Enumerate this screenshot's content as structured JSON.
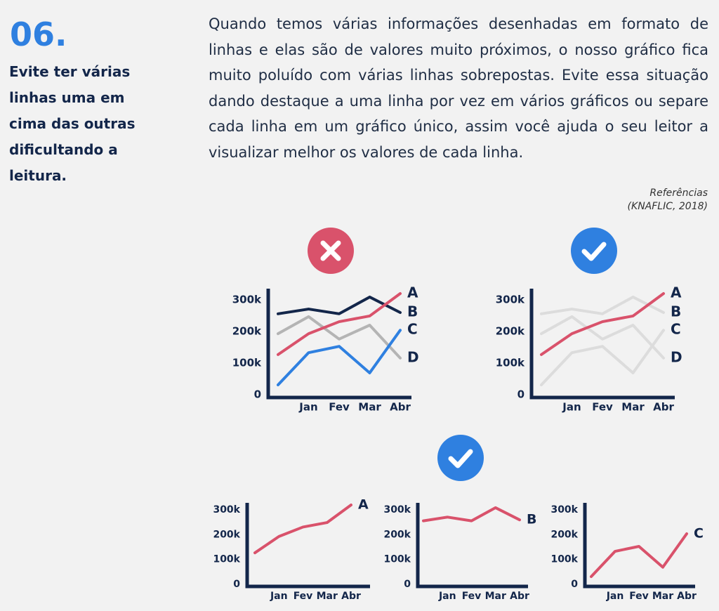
{
  "header": {
    "number": "06.",
    "title": "Evite ter várias linhas uma em cima das outras dificultando a leitura."
  },
  "body": "Quando temos várias informações desenhadas em formato de linhas e elas são de valores muito próximos, o nosso gráfico fica muito poluído com várias linhas sobrepostas. Evite essa situação dando destaque a uma linha por vez em vários gráficos ou separe cada linha em um gráfico único, assim você ajuda o seu leitor a visualizar melhor os valores de cada linha.",
  "reference": {
    "label": "Referências",
    "citation": "(KNAFLIC, 2018)"
  },
  "chart_data": [
    {
      "type": "line",
      "categories": [
        null,
        "Jan",
        "Fev",
        "Mar",
        "Abr"
      ],
      "series": [
        {
          "name": "A",
          "color": "#d9526b",
          "values": [
            127,
            193,
            231,
            249,
            320
          ]
        },
        {
          "name": "B",
          "color": "#13264a",
          "values": [
            256,
            271,
            256,
            309,
            260
          ]
        },
        {
          "name": "C",
          "color": "#2f80e0",
          "values": [
            31,
            133,
            153,
            69,
            204
          ]
        },
        {
          "name": "D",
          "color": "#b4b4b4",
          "values": [
            193,
            247,
            176,
            220,
            116
          ]
        }
      ],
      "ylim": [
        0,
        330
      ],
      "yticks": [
        0,
        {
          "value": 100,
          "label": "100k"
        },
        {
          "value": 200,
          "label": "200k"
        },
        {
          "value": 300,
          "label": "300k"
        }
      ]
    },
    {
      "type": "line",
      "categories": [
        null,
        "Jan",
        "Fev",
        "Mar",
        "Abr"
      ],
      "series": [
        {
          "name": "A",
          "color": "#d9526b",
          "values": [
            127,
            193,
            231,
            249,
            320
          ]
        },
        {
          "name": "B",
          "color": "#dcdcdc",
          "values": [
            256,
            271,
            256,
            309,
            260
          ]
        },
        {
          "name": "C",
          "color": "#dcdcdc",
          "values": [
            31,
            133,
            153,
            69,
            204
          ]
        },
        {
          "name": "D",
          "color": "#dcdcdc",
          "values": [
            193,
            247,
            176,
            220,
            116
          ]
        }
      ],
      "ylim": [
        0,
        330
      ],
      "yticks": [
        0,
        {
          "value": 100,
          "label": "100k"
        },
        {
          "value": 200,
          "label": "200k"
        },
        {
          "value": 300,
          "label": "300k"
        }
      ]
    },
    {
      "type": "line",
      "categories": [
        null,
        "Jan",
        "Fev",
        "Mar",
        "Abr"
      ],
      "series": [
        {
          "name": "A",
          "color": "#d9526b",
          "values": [
            127,
            193,
            231,
            249,
            320
          ]
        }
      ],
      "ylim": [
        0,
        330
      ],
      "yticks": [
        0,
        {
          "value": 100,
          "label": "100k"
        },
        {
          "value": 200,
          "label": "200k"
        },
        {
          "value": 300,
          "label": "300k"
        }
      ]
    },
    {
      "type": "line",
      "categories": [
        null,
        "Jan",
        "Fev",
        "Mar",
        "Abr"
      ],
      "series": [
        {
          "name": "B",
          "color": "#d9526b",
          "values": [
            256,
            271,
            256,
            309,
            260
          ]
        }
      ],
      "ylim": [
        0,
        330
      ],
      "yticks": [
        0,
        {
          "value": 100,
          "label": "100k"
        },
        {
          "value": 200,
          "label": "200k"
        },
        {
          "value": 300,
          "label": "300k"
        }
      ]
    },
    {
      "type": "line",
      "categories": [
        null,
        "Jan",
        "Fev",
        "Mar",
        "Abr"
      ],
      "series": [
        {
          "name": "C",
          "color": "#d9526b",
          "values": [
            31,
            133,
            153,
            69,
            204
          ]
        }
      ],
      "ylim": [
        0,
        330
      ],
      "yticks": [
        0,
        {
          "value": 100,
          "label": "100k"
        },
        {
          "value": 200,
          "label": "200k"
        },
        {
          "value": 300,
          "label": "300k"
        }
      ]
    }
  ]
}
